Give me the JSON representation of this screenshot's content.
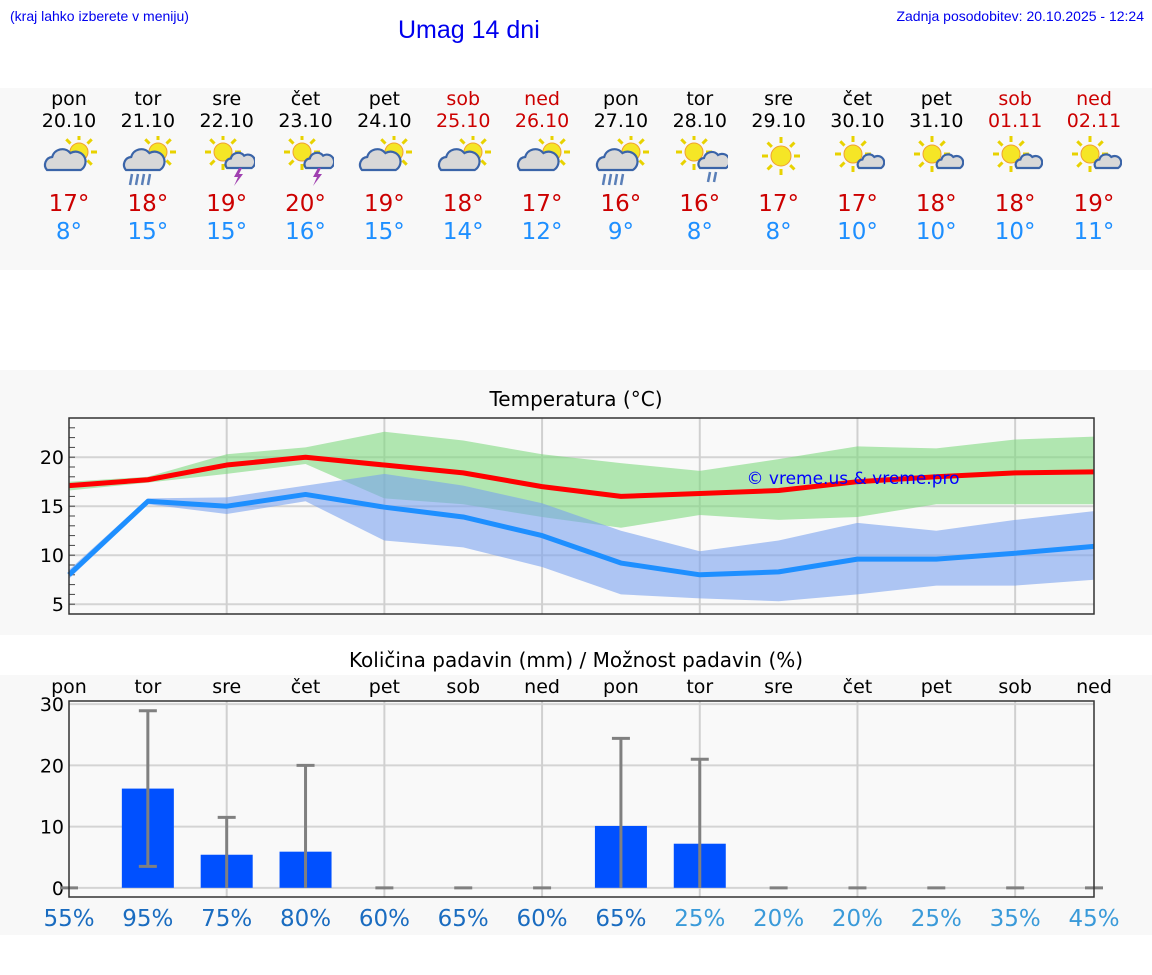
{
  "header": {
    "hint": "(kraj lahko izberete v meniju)",
    "title": "Umag 14 dni",
    "updated": "Zadnja posodobitev: 20.10.2025 - 12:24"
  },
  "days": [
    {
      "name": "pon",
      "date": "20.10",
      "max": "17°",
      "min": "8°",
      "icon": "partly-cloudy",
      "weekend": false
    },
    {
      "name": "tor",
      "date": "21.10",
      "max": "18°",
      "min": "15°",
      "icon": "partly-cloudy-rain",
      "weekend": false
    },
    {
      "name": "sre",
      "date": "22.10",
      "max": "19°",
      "min": "15°",
      "icon": "sun-thunderstorm",
      "weekend": false
    },
    {
      "name": "čet",
      "date": "23.10",
      "max": "20°",
      "min": "16°",
      "icon": "sun-thunderstorm",
      "weekend": false
    },
    {
      "name": "pet",
      "date": "24.10",
      "max": "19°",
      "min": "15°",
      "icon": "partly-cloudy",
      "weekend": false
    },
    {
      "name": "sob",
      "date": "25.10",
      "max": "18°",
      "min": "14°",
      "icon": "partly-cloudy",
      "weekend": true
    },
    {
      "name": "ned",
      "date": "26.10",
      "max": "17°",
      "min": "12°",
      "icon": "partly-cloudy",
      "weekend": true
    },
    {
      "name": "pon",
      "date": "27.10",
      "max": "16°",
      "min": "9°",
      "icon": "partly-cloudy-rain",
      "weekend": false
    },
    {
      "name": "tor",
      "date": "28.10",
      "max": "16°",
      "min": "8°",
      "icon": "sun-cloud-light-rain",
      "weekend": false
    },
    {
      "name": "sre",
      "date": "29.10",
      "max": "17°",
      "min": "8°",
      "icon": "sun",
      "weekend": false
    },
    {
      "name": "čet",
      "date": "30.10",
      "max": "17°",
      "min": "10°",
      "icon": "mostly-sunny",
      "weekend": false
    },
    {
      "name": "pet",
      "date": "31.10",
      "max": "18°",
      "min": "10°",
      "icon": "mostly-sunny",
      "weekend": false
    },
    {
      "name": "sob",
      "date": "01.11",
      "max": "18°",
      "min": "10°",
      "icon": "mostly-sunny",
      "weekend": true
    },
    {
      "name": "ned",
      "date": "02.11",
      "max": "19°",
      "min": "11°",
      "icon": "mostly-sunny",
      "weekend": true
    }
  ],
  "chart_data": [
    {
      "type": "line",
      "title": "Temperatura (°C)",
      "watermark": "© vreme.us & vreme.pro",
      "ylim": [
        4,
        24
      ],
      "yticks": [
        5,
        10,
        15,
        20
      ],
      "grid": true,
      "x": [
        "20.10",
        "21.10",
        "22.10",
        "23.10",
        "24.10",
        "25.10",
        "26.10",
        "27.10",
        "28.10",
        "29.10",
        "30.10",
        "31.10",
        "01.11",
        "02.11"
      ],
      "series": [
        {
          "name": "max",
          "color": "#ff0000",
          "values": [
            17.1,
            17.7,
            19.2,
            20.0,
            19.2,
            18.4,
            17.0,
            16.0,
            16.3,
            16.6,
            17.5,
            18.0,
            18.4,
            18.5
          ],
          "band": [
            [
              16.6,
              17.4,
              18.3,
              19.3,
              15.8,
              15.2,
              13.9,
              12.8,
              14.1,
              13.6,
              13.9,
              15.2,
              15.2,
              15.2
            ],
            [
              17.5,
              18.0,
              20.3,
              21.0,
              22.6,
              21.7,
              20.3,
              19.4,
              18.6,
              19.8,
              21.1,
              20.9,
              21.8,
              22.1
            ]
          ],
          "band_color": "#7fd97f"
        },
        {
          "name": "min",
          "color": "#1e8fff",
          "values": [
            8.0,
            15.5,
            15.0,
            16.2,
            14.9,
            13.9,
            12.0,
            9.2,
            8.0,
            8.3,
            9.6,
            9.6,
            10.2,
            10.9
          ],
          "band": [
            [
              7.6,
              15.2,
              14.2,
              15.5,
              11.5,
              10.8,
              8.8,
              6.0,
              5.6,
              5.3,
              6.0,
              6.9,
              6.9,
              7.5
            ],
            [
              8.5,
              15.8,
              15.9,
              17.1,
              18.3,
              17.1,
              15.3,
              12.5,
              10.4,
              11.5,
              13.3,
              12.5,
              13.6,
              14.5
            ]
          ],
          "band_color": "#7aa2ee"
        }
      ]
    },
    {
      "type": "bar",
      "title": "Količina padavin (mm) / Možnost padavin (%)",
      "ylim": [
        -1.5,
        30.5
      ],
      "yticks": [
        0,
        10,
        20,
        30
      ],
      "grid": true,
      "categories": [
        "pon",
        "tor",
        "sre",
        "čet",
        "pet",
        "sob",
        "ned",
        "pon",
        "tor",
        "sre",
        "čet",
        "pet",
        "sob",
        "ned"
      ],
      "values": [
        0,
        16.2,
        5.4,
        5.9,
        0,
        0,
        0,
        10.1,
        7.2,
        0,
        0,
        0,
        0,
        0
      ],
      "err_low": [
        0,
        3.5,
        0,
        0,
        0,
        0,
        0,
        0,
        0,
        0,
        0,
        0,
        0,
        0
      ],
      "err_high": [
        0,
        28.9,
        11.5,
        20.0,
        0,
        0,
        0,
        24.4,
        21.0,
        0,
        0,
        0,
        0,
        0
      ],
      "probability": [
        "55%",
        "95%",
        "75%",
        "80%",
        "60%",
        "65%",
        "60%",
        "65%",
        "25%",
        "20%",
        "20%",
        "25%",
        "35%",
        "45%"
      ],
      "bar_color": "#0050ff"
    }
  ]
}
